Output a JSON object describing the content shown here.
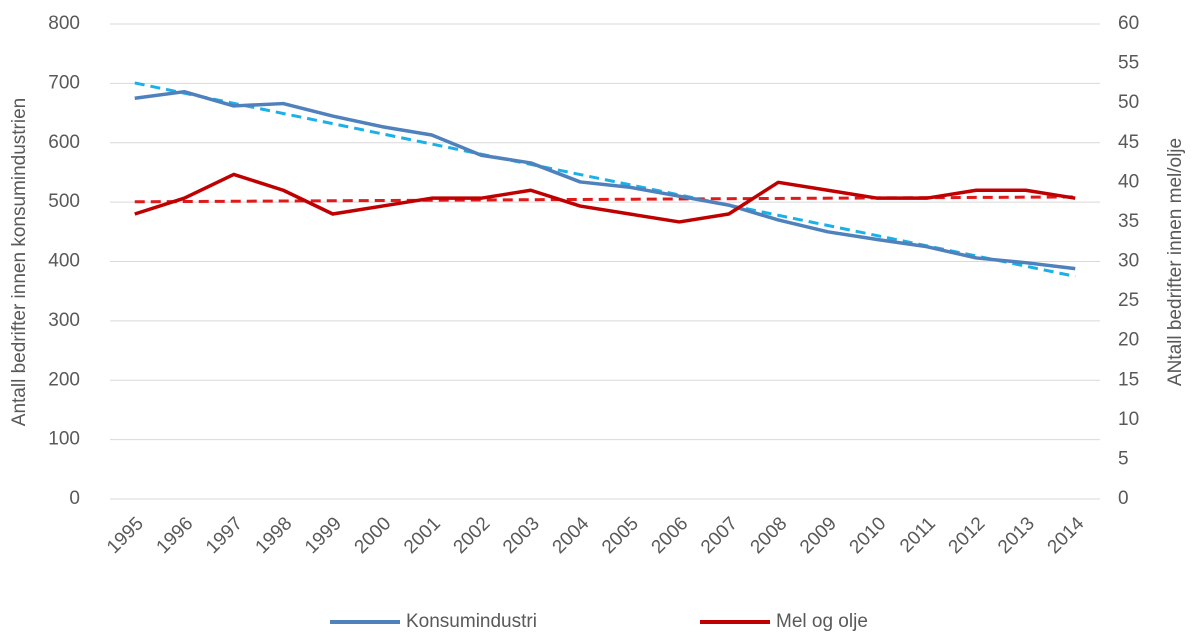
{
  "chart_data": {
    "type": "line",
    "categories": [
      "1995",
      "1996",
      "1997",
      "1998",
      "1999",
      "2000",
      "2001",
      "2002",
      "2003",
      "2004",
      "2005",
      "2006",
      "2007",
      "2008",
      "2009",
      "2010",
      "2011",
      "2012",
      "2013",
      "2014"
    ],
    "series": [
      {
        "name": "Konsumindustri",
        "color": "#4f81bd",
        "trendline_color": "#1ab0e8",
        "values": [
          675,
          686,
          662,
          666,
          645,
          627,
          613,
          579,
          566,
          534,
          525,
          510,
          495,
          470,
          450,
          437,
          425,
          406,
          398,
          388
        ]
      },
      {
        "name": "Mel og olje",
        "color": "#c00000",
        "trendline_color": "#e0191a",
        "axis": "y2",
        "values": [
          36,
          38,
          41,
          39,
          36,
          37,
          38,
          38,
          39,
          37,
          36,
          35,
          36,
          40,
          39,
          38,
          38,
          39,
          39,
          38
        ]
      }
    ],
    "ylabel": "Antall bedrifter innen konsumindustrien",
    "y2label": "ANtall bedrifter innen mel/olje",
    "ylim": [
      0,
      800
    ],
    "yticks": [
      0,
      100,
      200,
      300,
      400,
      500,
      600,
      700,
      800
    ],
    "y2lim": [
      0,
      60
    ],
    "y2ticks": [
      0,
      5,
      10,
      15,
      20,
      25,
      30,
      35,
      40,
      45,
      50,
      55,
      60
    ],
    "grid": true,
    "trendline": "linear",
    "legend": "bottom"
  }
}
